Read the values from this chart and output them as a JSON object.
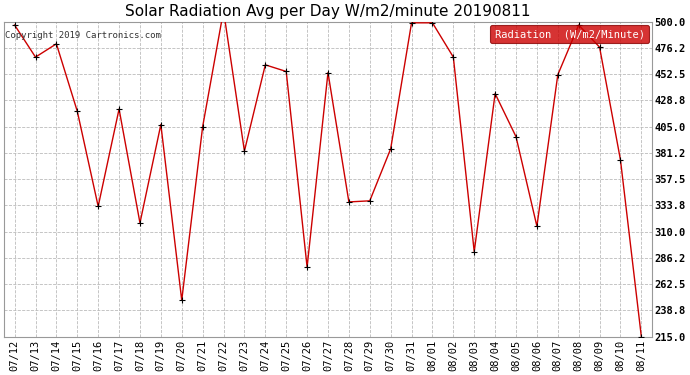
{
  "title": "Solar Radiation Avg per Day W/m2/minute 20190811",
  "copyright": "Copyright 2019 Cartronics.com",
  "legend_label": "Radiation  (W/m2/Minute)",
  "legend_bg": "#cc0000",
  "legend_text_color": "#ffffff",
  "line_color": "#cc0000",
  "marker_color": "#000000",
  "bg_color": "#ffffff",
  "plot_bg_color": "#ffffff",
  "grid_color": "#bbbbbb",
  "grid_style": "--",
  "dates": [
    "07/12",
    "07/13",
    "07/14",
    "07/15",
    "07/16",
    "07/17",
    "07/18",
    "07/19",
    "07/20",
    "07/21",
    "07/22",
    "07/23",
    "07/24",
    "07/25",
    "07/26",
    "07/27",
    "07/28",
    "07/29",
    "07/30",
    "07/31",
    "08/01",
    "08/02",
    "08/03",
    "08/04",
    "08/05",
    "08/06",
    "08/07",
    "08/08",
    "08/09",
    "08/10",
    "08/11"
  ],
  "values": [
    497,
    468,
    480,
    419,
    333,
    421,
    318,
    407,
    248,
    405,
    510,
    383,
    461,
    455,
    278,
    454,
    337,
    338,
    385,
    499,
    499,
    468,
    292,
    435,
    396,
    315,
    452,
    497,
    477,
    375,
    215
  ],
  "ylim_min": 215.0,
  "ylim_max": 500.0,
  "ytick_values": [
    215.0,
    238.8,
    262.5,
    286.2,
    310.0,
    333.8,
    357.5,
    381.2,
    405.0,
    428.8,
    452.5,
    476.2,
    500.0
  ],
  "ytick_labels": [
    "215.0",
    "238.8",
    "262.5",
    "286.2",
    "310.0",
    "333.8",
    "357.5",
    "381.2",
    "405.0",
    "428.8",
    "452.5",
    "476.2",
    "500.0"
  ],
  "title_fontsize": 11,
  "copyright_fontsize": 6.5,
  "tick_fontsize": 7.5,
  "legend_fontsize": 7.5
}
